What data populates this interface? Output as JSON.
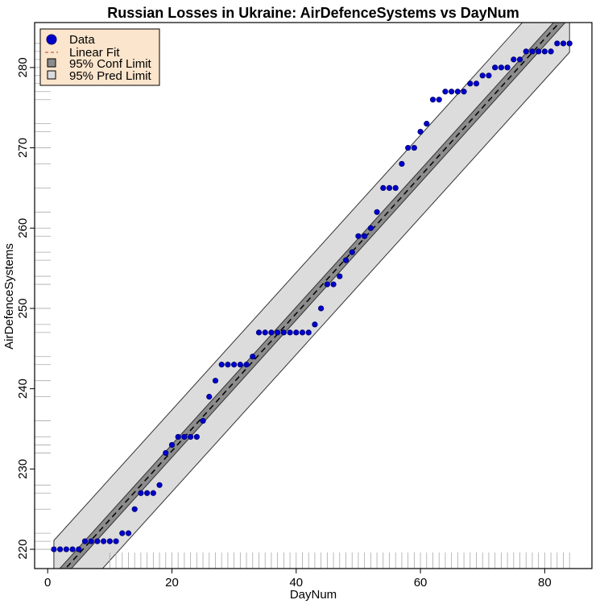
{
  "chart_data": {
    "type": "scatter",
    "title": "Russian Losses in Ukraine: AirDefenceSystems vs DayNum",
    "xlabel": "DayNum",
    "ylabel": "AirDefenceSystems",
    "xlim": [
      -2.1,
      87.6
    ],
    "ylim": [
      217.6,
      285.6
    ],
    "xticks": [
      0,
      20,
      40,
      60,
      80
    ],
    "yticks": [
      220,
      230,
      240,
      250,
      260,
      270,
      280
    ],
    "grid": false,
    "legend_position": "top-left",
    "legend": [
      {
        "label": "Data",
        "kind": "point"
      },
      {
        "label": "Linear Fit",
        "kind": "dashed-line"
      },
      {
        "label": "95% Conf Limit",
        "kind": "box-dark"
      },
      {
        "label": "95% Pred Limit",
        "kind": "box-light"
      }
    ],
    "fit": {
      "points": [
        [
          1,
          216.0
        ],
        [
          84,
          287.0
        ]
      ],
      "conf_halfwidth": 0.8,
      "pred_halfwidth": 5.1
    },
    "series": [
      {
        "x": [
          1,
          2,
          3,
          4,
          5,
          6,
          7,
          8,
          9,
          10,
          11,
          12,
          13,
          14,
          15,
          16,
          17,
          18,
          19,
          20,
          21,
          22,
          23,
          24,
          25,
          26,
          27,
          28,
          29,
          30,
          31,
          32,
          33,
          34,
          35,
          36,
          37,
          38,
          39,
          40,
          41,
          42,
          43,
          44,
          45,
          46,
          47,
          48,
          49,
          50,
          51,
          52,
          53,
          54,
          55,
          56,
          57,
          58,
          59,
          60,
          61,
          62,
          63,
          64,
          65,
          66,
          67,
          68,
          69,
          70,
          71,
          72,
          73,
          74,
          75,
          76,
          77,
          78,
          79,
          80,
          81,
          82,
          83,
          84
        ],
        "y": [
          220,
          220,
          220,
          220,
          220,
          221,
          221,
          221,
          221,
          221,
          221,
          222,
          222,
          225,
          227,
          227,
          227,
          228,
          232,
          233,
          234,
          234,
          234,
          234,
          236,
          239,
          241,
          243,
          243,
          243,
          243,
          243,
          244,
          247,
          247,
          247,
          247,
          247,
          247,
          247,
          247,
          247,
          248,
          250,
          253,
          253,
          254,
          256,
          257,
          259,
          259,
          260,
          262,
          265,
          265,
          265,
          268,
          270,
          270,
          272,
          273,
          276,
          276,
          277,
          277,
          277,
          277,
          278,
          278,
          279,
          279,
          280,
          280,
          280,
          281,
          281,
          282,
          282,
          282,
          282,
          282,
          283,
          283,
          283
        ]
      }
    ],
    "colors": {
      "point_fill": "#0000cc",
      "point_stroke": "#00006e",
      "fit_line": "#000000",
      "conf_band": "#8c8c8c",
      "pred_band": "#dcdcdc",
      "legend_bg": "#fbe5cc"
    }
  }
}
